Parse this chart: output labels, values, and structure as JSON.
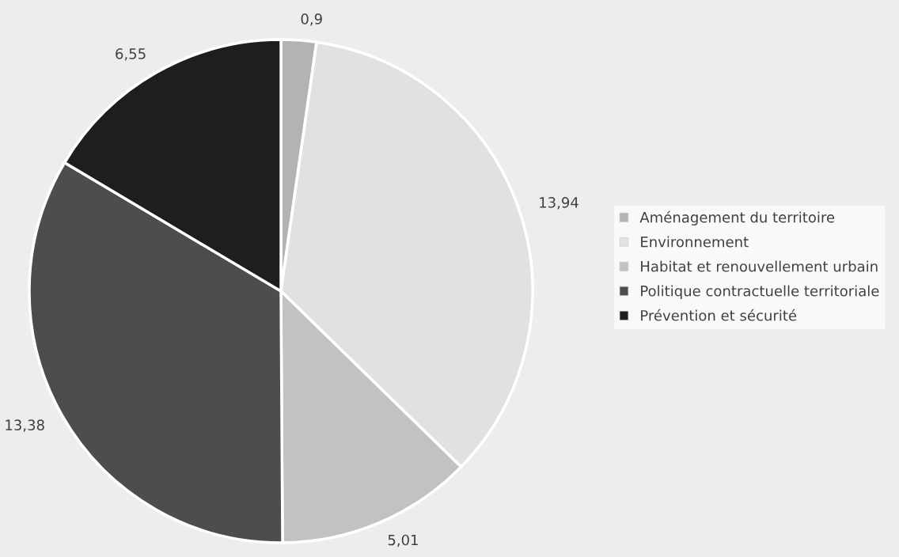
{
  "chart_data": {
    "type": "pie",
    "categories": [
      "Aménagement du territoire",
      "Environnement",
      "Habitat et renouvellement urbain",
      "Politique contractuelle territoriale",
      "Prévention et sécurité"
    ],
    "values": [
      0.9,
      13.94,
      5.01,
      13.38,
      6.55
    ],
    "value_labels": [
      "0,9",
      "13,94",
      "5,01",
      "13,38",
      "6,55"
    ],
    "colors": [
      "#b3b3b3",
      "#e1e1e1",
      "#c2c2c2",
      "#4d4d4d",
      "#1e1e1e"
    ],
    "legend": "right"
  }
}
